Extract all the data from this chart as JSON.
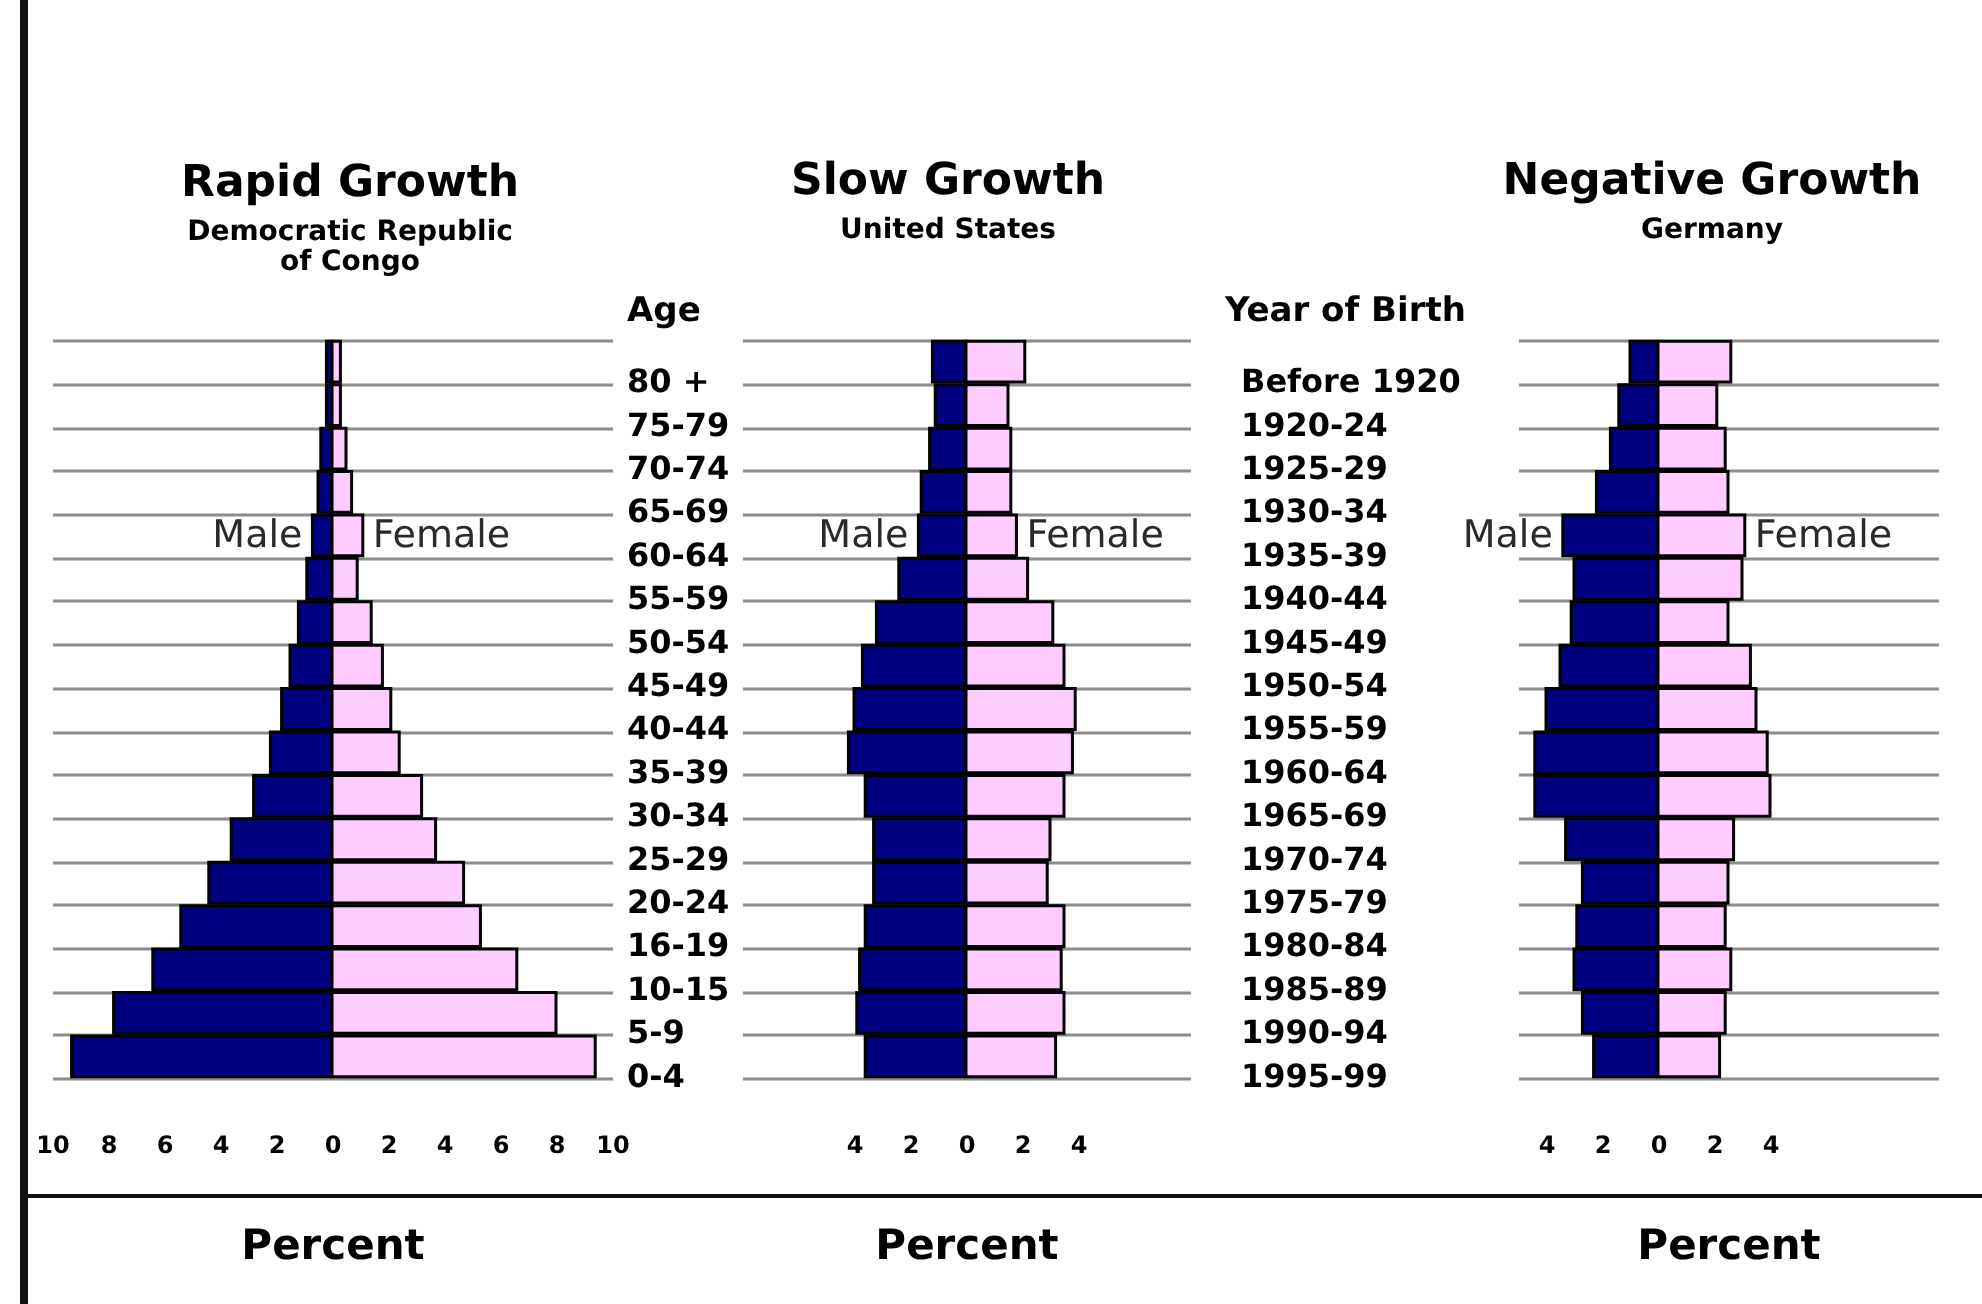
{
  "chart_data": [
    {
      "type": "bar",
      "orientation": "horizontal",
      "stacked": true,
      "title": "Rapid Growth",
      "subtitle": "Democratic Republic of Congo",
      "xlabel": "Percent",
      "categories": [
        "80 +",
        "75-79",
        "70-74",
        "65-69",
        "60-64",
        "55-59",
        "50-54",
        "45-49",
        "40-44",
        "35-39",
        "30-34",
        "25-29",
        "20-24",
        "16-19",
        "10-15",
        "5-9",
        "0-4"
      ],
      "series": [
        {
          "name": "Male",
          "color": "#000080",
          "values": [
            -0.2,
            -0.2,
            -0.4,
            -0.5,
            -0.7,
            -0.9,
            -1.2,
            -1.5,
            -1.8,
            -2.2,
            -2.8,
            -3.6,
            -4.4,
            -5.4,
            -6.4,
            -7.8,
            -9.3
          ]
        },
        {
          "name": "Female",
          "color": "#ffccff",
          "values": [
            0.3,
            0.3,
            0.5,
            0.7,
            1.1,
            0.9,
            1.4,
            1.8,
            2.1,
            2.4,
            3.2,
            3.7,
            4.7,
            5.3,
            6.6,
            8.0,
            9.4
          ]
        }
      ],
      "xlim": [
        -10,
        10
      ],
      "xticks": [
        {
          "value": -10,
          "label": "10"
        },
        {
          "value": -8,
          "label": "8"
        },
        {
          "value": -6,
          "label": "6"
        },
        {
          "value": -4,
          "label": "4"
        },
        {
          "value": -2,
          "label": "2"
        },
        0,
        2,
        4,
        6,
        8,
        10
      ],
      "grid": "y",
      "tick_labels": "x"
    },
    {
      "type": "bar",
      "orientation": "horizontal",
      "stacked": true,
      "title": "Slow Growth",
      "subtitle": "United States",
      "xlabel": "Percent",
      "ylabel": "Age",
      "categories": [
        "80 +",
        "75-79",
        "70-74",
        "65-69",
        "60-64",
        "55-59",
        "50-54",
        "45-49",
        "40-44",
        "35-39",
        "30-34",
        "25-29",
        "20-24",
        "16-19",
        "10-15",
        "5-9",
        "0-4"
      ],
      "series": [
        {
          "name": "Male",
          "color": "#000080",
          "values": [
            -1.2,
            -1.1,
            -1.3,
            -1.6,
            -1.7,
            -2.4,
            -3.2,
            -3.7,
            -4.0,
            -4.2,
            -3.6,
            -3.3,
            -3.3,
            -3.6,
            -3.8,
            -3.9,
            -3.6
          ]
        },
        {
          "name": "Female",
          "color": "#ffccff",
          "values": [
            2.1,
            1.5,
            1.6,
            1.6,
            1.8,
            2.2,
            3.1,
            3.5,
            3.9,
            3.8,
            3.5,
            3.0,
            2.9,
            3.5,
            3.4,
            3.5,
            3.2
          ]
        }
      ],
      "xlim": [
        -8,
        8
      ],
      "xticks": [
        {
          "value": -4,
          "label": "4"
        },
        {
          "value": -2,
          "label": "2"
        },
        0,
        2,
        4
      ],
      "grid": "y"
    },
    {
      "type": "bar",
      "orientation": "horizontal",
      "stacked": true,
      "title": "Negative Growth",
      "subtitle": "Germany",
      "xlabel": "Percent",
      "ylabel": "Year of Birth",
      "categories": [
        "Before 1920",
        "1920-24",
        "1925-29",
        "1930-34",
        "1935-39",
        "1940-44",
        "1945-49",
        "1950-54",
        "1955-59",
        "1960-64",
        "1965-69",
        "1970-74",
        "1975-79",
        "1980-84",
        "1985-89",
        "1990-94",
        "1995-99"
      ],
      "series": [
        {
          "name": "Male",
          "color": "#000080",
          "values": [
            -1.0,
            -1.4,
            -1.7,
            -2.2,
            -3.4,
            -3.0,
            -3.1,
            -3.5,
            -4.0,
            -4.4,
            -4.4,
            -3.3,
            -2.7,
            -2.9,
            -3.0,
            -2.7,
            -2.3
          ]
        },
        {
          "name": "Female",
          "color": "#ffccff",
          "values": [
            2.6,
            2.1,
            2.4,
            2.5,
            3.1,
            3.0,
            2.5,
            3.3,
            3.5,
            3.9,
            4.0,
            2.7,
            2.5,
            2.4,
            2.6,
            2.4,
            2.2
          ]
        }
      ],
      "xlim": [
        -5,
        10
      ],
      "xticks": [
        {
          "value": -4,
          "label": "4"
        },
        {
          "value": -2,
          "label": "2"
        },
        0,
        2,
        4
      ],
      "grid": "y"
    }
  ]
}
